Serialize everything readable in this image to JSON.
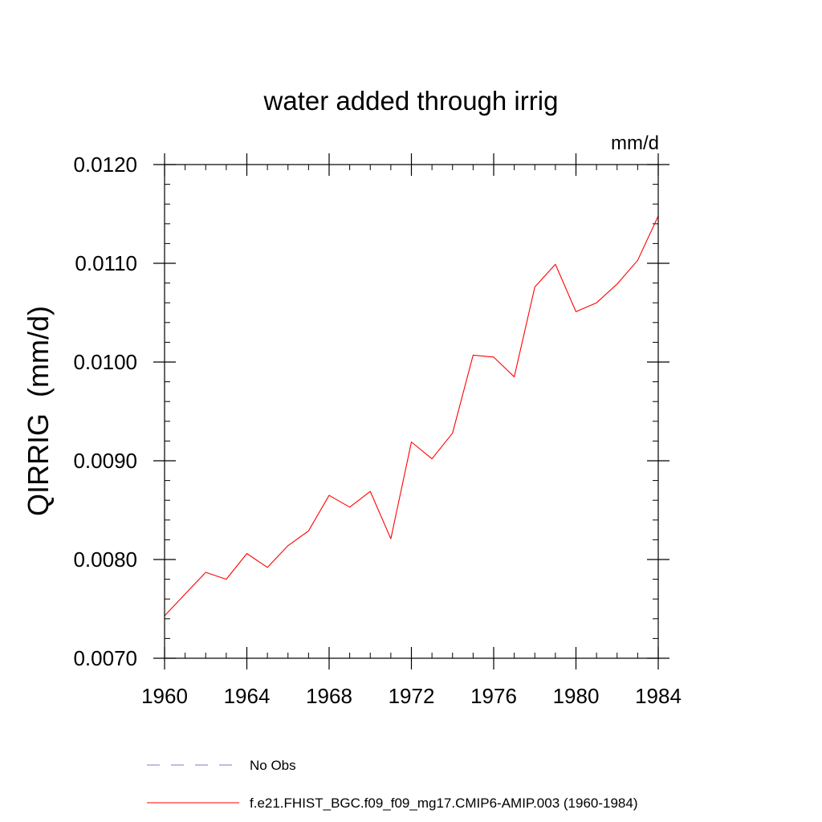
{
  "chart_data": {
    "type": "line",
    "title": "water added through irrig",
    "units": "mm/d",
    "ylabel": "QIRRIG  (mm/d)",
    "xlabel": "",
    "xlim": [
      1960,
      1984
    ],
    "ylim": [
      0.007,
      0.012
    ],
    "x_ticks": [
      1960,
      1964,
      1968,
      1972,
      1976,
      1980,
      1984
    ],
    "x_tick_labels": [
      "1960",
      "1964",
      "1968",
      "1972",
      "1976",
      "1980",
      "1984"
    ],
    "y_ticks": [
      0.007,
      0.008,
      0.009,
      0.01,
      0.011,
      0.012
    ],
    "y_tick_labels": [
      "0.0070",
      "0.0080",
      "0.0090",
      "0.0100",
      "0.0110",
      "0.0120"
    ],
    "x_minor_step": 1,
    "y_minor_step": 0.0002,
    "series": [
      {
        "name": "f.e21.FHIST_BGC.f09_f09_mg17.CMIP6-AMIP.003 (1960-1984)",
        "color": "#ff0000",
        "style": "solid",
        "x": [
          1960,
          1961,
          1962,
          1963,
          1964,
          1965,
          1966,
          1967,
          1968,
          1969,
          1970,
          1971,
          1972,
          1973,
          1974,
          1975,
          1976,
          1977,
          1978,
          1979,
          1980,
          1981,
          1982,
          1983,
          1984
        ],
        "values": [
          0.00743,
          0.00765,
          0.00787,
          0.0078,
          0.00806,
          0.00792,
          0.00814,
          0.00829,
          0.00865,
          0.00853,
          0.00869,
          0.00821,
          0.00919,
          0.00902,
          0.00928,
          0.01007,
          0.01005,
          0.00985,
          0.01076,
          0.01099,
          0.01051,
          0.0106,
          0.01079,
          0.01103,
          0.01148
        ]
      }
    ],
    "legend": [
      {
        "label": "No Obs",
        "color": "#7b7bc8",
        "style": "dashed"
      },
      {
        "label": "f.e21.FHIST_BGC.f09_f09_mg17.CMIP6-AMIP.003 (1960-1984)",
        "color": "#ff0000",
        "style": "solid"
      }
    ]
  }
}
